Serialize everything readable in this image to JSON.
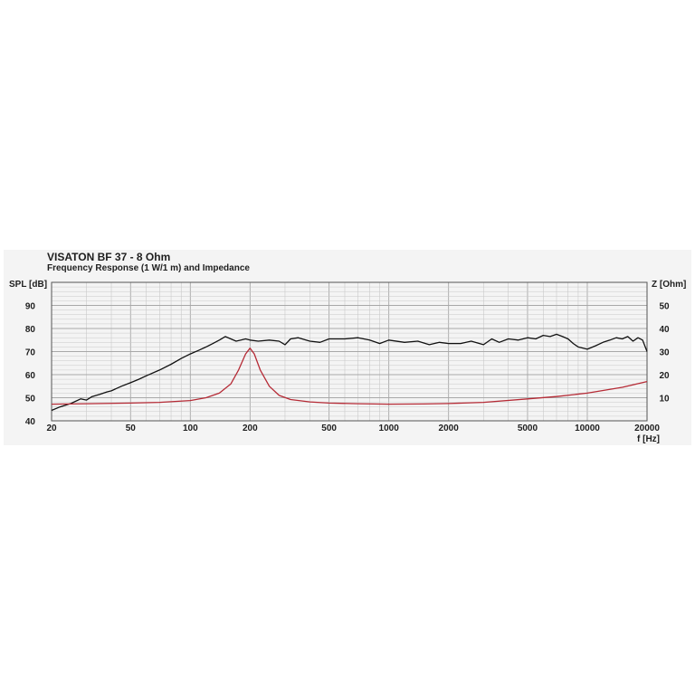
{
  "colors": {
    "spl": "#111111",
    "impedance": "#b52a35",
    "grid_major": "#a8a8a8",
    "grid_minor": "#c9c9c9",
    "background": "#f4f4f4"
  },
  "chart_data": {
    "type": "line",
    "title": "VISATON BF 37 - 8 Ohm",
    "subtitle": "Frequency Response (1 W/1 m) and Impedance",
    "xlabel": "f [Hz]",
    "ylabel_left": "SPL [dB]",
    "ylabel_right": "Z [Ohm]",
    "x_scale": "log",
    "xlim": [
      20,
      20000
    ],
    "ylim_left": [
      40,
      100
    ],
    "ylim_right": [
      0,
      60
    ],
    "x_ticks": [
      20,
      50,
      100,
      200,
      500,
      1000,
      2000,
      5000,
      10000,
      20000
    ],
    "y_ticks_left": [
      40,
      50,
      60,
      70,
      80,
      90
    ],
    "y_ticks_right": [
      10,
      20,
      30,
      40,
      50
    ],
    "grid": true,
    "series": [
      {
        "name": "SPL",
        "axis": "left",
        "x": [
          20,
          22,
          25,
          28,
          30,
          32,
          35,
          38,
          40,
          45,
          50,
          55,
          60,
          70,
          80,
          90,
          100,
          110,
          120,
          130,
          140,
          150,
          160,
          170,
          180,
          190,
          200,
          220,
          250,
          280,
          300,
          320,
          350,
          400,
          450,
          500,
          600,
          700,
          800,
          900,
          1000,
          1200,
          1400,
          1600,
          1800,
          2000,
          2300,
          2600,
          3000,
          3300,
          3600,
          4000,
          4500,
          5000,
          5500,
          6000,
          6500,
          7000,
          7500,
          8000,
          8500,
          9000,
          10000,
          11000,
          12000,
          13000,
          14000,
          15000,
          16000,
          17000,
          18000,
          19000,
          20000
        ],
        "values": [
          44.5,
          46,
          47.5,
          49.5,
          49,
          50.5,
          51.5,
          52.5,
          53,
          55,
          56.5,
          58,
          59.5,
          62,
          64.5,
          67,
          69,
          70.5,
          72,
          73.5,
          75,
          76.5,
          75.5,
          74.5,
          75,
          75.5,
          75,
          74.5,
          75,
          74.5,
          73,
          75.5,
          76,
          74.5,
          74,
          75.5,
          75.5,
          76,
          75,
          73.5,
          75,
          74,
          74.5,
          73,
          74,
          73.5,
          73.5,
          74.5,
          73,
          75.5,
          74,
          75.5,
          75,
          76,
          75.5,
          77,
          76.5,
          77.5,
          76.5,
          75.5,
          73.5,
          72,
          71,
          72.5,
          74,
          75,
          76,
          75.5,
          76.5,
          74.5,
          76,
          75,
          70
        ]
      },
      {
        "name": "Impedance",
        "axis": "right",
        "x": [
          20,
          30,
          50,
          70,
          100,
          120,
          140,
          160,
          175,
          190,
          200,
          210,
          225,
          250,
          280,
          320,
          400,
          500,
          700,
          1000,
          1500,
          2000,
          3000,
          5000,
          7000,
          10000,
          15000,
          20000
        ],
        "values": [
          7.2,
          7.4,
          7.7,
          8,
          8.8,
          10,
          12,
          16,
          22,
          29,
          31.5,
          29,
          22,
          15,
          11,
          9.2,
          8.2,
          7.7,
          7.4,
          7.2,
          7.3,
          7.5,
          8,
          9.5,
          10.5,
          12,
          14.5,
          17
        ]
      }
    ]
  }
}
